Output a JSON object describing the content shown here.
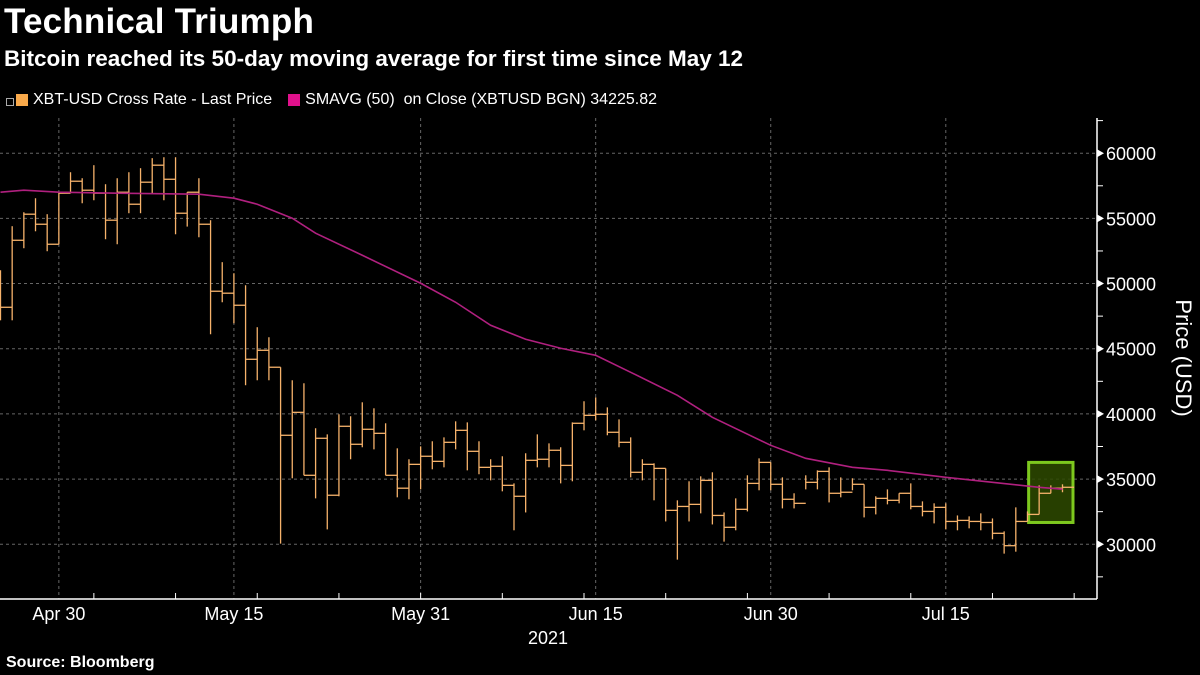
{
  "title": "Technical Triumph",
  "subtitle": "Bitcoin reached its 50-day moving average for first time since May 12",
  "source": "Source: Bloomberg",
  "colors": {
    "price": "#f6b26b",
    "legend_price": "#f9a94b",
    "sma": "#e0118c",
    "sma_line": "#b0207f",
    "highlight_fill": "#2e4a00",
    "highlight_stroke": "#7dc81e",
    "grid": "#666666",
    "axis": "#ffffff"
  },
  "legend": [
    {
      "label": "XBT-USD Cross Rate - Last Price",
      "color": "#f9a94b"
    },
    {
      "label": "SMAVG (50)  on Close (XBTUSD BGN) 34225.82",
      "color": "#e0118c"
    }
  ],
  "chart_data": {
    "type": "bar-hlc",
    "title": "Technical Triumph",
    "subtitle": "Bitcoin reached its 50-day moving average for first time since May 12",
    "ylabel": "Price (USD)",
    "xlabel": "2021",
    "ylim": [
      25800,
      62700
    ],
    "xlim": [
      "2021-04-25",
      "2021-07-28"
    ],
    "yticks": [
      30000,
      35000,
      40000,
      45000,
      50000,
      55000,
      60000
    ],
    "xticks": [
      {
        "date": "2021-04-30",
        "label": "Apr 30"
      },
      {
        "date": "2021-05-15",
        "label": "May 15"
      },
      {
        "date": "2021-05-31",
        "label": "May 31"
      },
      {
        "date": "2021-06-15",
        "label": "Jun 15"
      },
      {
        "date": "2021-06-30",
        "label": "Jun 30"
      },
      {
        "date": "2021-07-15",
        "label": "Jul 15"
      }
    ],
    "grid": true,
    "legend_position": "top-left",
    "series": [
      {
        "name": "XBT-USD Cross Rate - Last Price",
        "fields": [
          "date",
          "high",
          "low",
          "close"
        ],
        "bars": [
          [
            "2021-04-25",
            51020,
            47180,
            48180
          ],
          [
            "2021-04-26",
            54400,
            47180,
            53320
          ],
          [
            "2021-04-27",
            55470,
            52710,
            55320
          ],
          [
            "2021-04-28",
            56545,
            54010,
            54550
          ],
          [
            "2021-04-29",
            55320,
            52480,
            53015
          ],
          [
            "2021-04-30",
            57006,
            53015,
            56930
          ],
          [
            "2021-05-01",
            58540,
            56930,
            57850
          ],
          [
            "2021-05-02",
            58080,
            56160,
            57160
          ],
          [
            "2021-05-03",
            59080,
            56390,
            56930
          ],
          [
            "2021-05-04",
            57620,
            53400,
            54860
          ],
          [
            "2021-05-05",
            58080,
            53015,
            57006
          ],
          [
            "2021-05-06",
            58540,
            55395,
            56085
          ],
          [
            "2021-05-07",
            58850,
            55395,
            57775
          ],
          [
            "2021-05-08",
            59620,
            56930,
            59080
          ],
          [
            "2021-05-09",
            59690,
            56390,
            58000
          ],
          [
            "2021-05-10",
            59690,
            53780,
            55395
          ],
          [
            "2021-05-11",
            57006,
            54370,
            57006
          ],
          [
            "2021-05-12",
            58080,
            53550,
            54550
          ],
          [
            "2021-05-13",
            54860,
            46110,
            49410
          ],
          [
            "2021-05-14",
            51640,
            48565,
            49260
          ],
          [
            "2021-05-15",
            50790,
            46950,
            48335
          ],
          [
            "2021-05-16",
            49870,
            42200,
            44190
          ],
          [
            "2021-05-17",
            46650,
            42580,
            44880
          ],
          [
            "2021-05-18",
            45880,
            42580,
            43580
          ],
          [
            "2021-05-19",
            43580,
            30050,
            38360
          ],
          [
            "2021-05-20",
            42580,
            35060,
            40120
          ],
          [
            "2021-05-21",
            42350,
            35290,
            35290
          ],
          [
            "2021-05-22",
            38900,
            33520,
            38130
          ],
          [
            "2021-05-23",
            38430,
            31140,
            33760
          ],
          [
            "2021-05-24",
            39970,
            33680,
            39050
          ],
          [
            "2021-05-25",
            39820,
            36520,
            37670
          ],
          [
            "2021-05-26",
            40890,
            37440,
            38820
          ],
          [
            "2021-05-27",
            40430,
            37280,
            38510
          ],
          [
            "2021-05-28",
            39280,
            35290,
            35290
          ],
          [
            "2021-05-29",
            37360,
            33600,
            34300
          ],
          [
            "2021-05-30",
            36520,
            33450,
            36130
          ],
          [
            "2021-05-31",
            37510,
            34210,
            36750
          ],
          [
            "2021-06-01",
            37900,
            35750,
            36360
          ],
          [
            "2021-06-02",
            38200,
            35900,
            37820
          ],
          [
            "2021-06-03",
            39430,
            37280,
            38740
          ],
          [
            "2021-06-04",
            39350,
            35670,
            37130
          ],
          [
            "2021-06-05",
            37900,
            35370,
            35900
          ],
          [
            "2021-06-06",
            36520,
            34900,
            35980
          ],
          [
            "2021-06-07",
            36750,
            34060,
            34520
          ],
          [
            "2021-06-08",
            34670,
            31070,
            33680
          ],
          [
            "2021-06-09",
            36980,
            32440,
            36440
          ],
          [
            "2021-06-10",
            38430,
            35900,
            36520
          ],
          [
            "2021-06-11",
            37740,
            35900,
            37210
          ],
          [
            "2021-06-12",
            37440,
            34670,
            36050
          ],
          [
            "2021-06-13",
            39350,
            34830,
            39280
          ],
          [
            "2021-06-14",
            40970,
            38740,
            39890
          ],
          [
            "2021-06-15",
            41270,
            39510,
            39970
          ],
          [
            "2021-06-16",
            40500,
            38360,
            38590
          ],
          [
            "2021-06-17",
            39580,
            37440,
            37820
          ],
          [
            "2021-06-18",
            38200,
            35130,
            35520
          ],
          [
            "2021-06-19",
            36520,
            34900,
            36130
          ],
          [
            "2021-06-20",
            36210,
            33370,
            35820
          ],
          [
            "2021-06-21",
            35820,
            31750,
            32600
          ],
          [
            "2021-06-22",
            33370,
            28820,
            32900
          ],
          [
            "2021-06-23",
            34830,
            31750,
            33060
          ],
          [
            "2021-06-24",
            35210,
            32370,
            34900
          ],
          [
            "2021-06-25",
            35520,
            31520,
            32210
          ],
          [
            "2021-06-26",
            32440,
            30200,
            31300
          ],
          [
            "2021-06-27",
            33520,
            31070,
            32680
          ],
          [
            "2021-06-28",
            35290,
            32520,
            34670
          ],
          [
            "2021-06-29",
            36590,
            34140,
            36280
          ],
          [
            "2021-06-30",
            36280,
            34140,
            34600
          ],
          [
            "2021-07-01",
            35130,
            32750,
            33450
          ],
          [
            "2021-07-02",
            33910,
            32750,
            33140
          ],
          [
            "2021-07-03",
            35290,
            34210,
            34750
          ],
          [
            "2021-07-04",
            35670,
            34210,
            35590
          ],
          [
            "2021-07-05",
            35900,
            33210,
            33910
          ],
          [
            "2021-07-06",
            35130,
            33600,
            33990
          ],
          [
            "2021-07-07",
            35060,
            34140,
            34600
          ],
          [
            "2021-07-08",
            34600,
            32060,
            32830
          ],
          [
            "2021-07-09",
            33680,
            32290,
            33520
          ],
          [
            "2021-07-10",
            34210,
            33060,
            33370
          ],
          [
            "2021-07-11",
            33910,
            33140,
            33910
          ],
          [
            "2021-07-12",
            34670,
            32680,
            32900
          ],
          [
            "2021-07-13",
            33290,
            32140,
            32520
          ],
          [
            "2021-07-14",
            33140,
            31600,
            32830
          ],
          [
            "2021-07-15",
            33140,
            31140,
            31750
          ],
          [
            "2021-07-16",
            32210,
            31070,
            31830
          ],
          [
            "2021-07-17",
            32140,
            31220,
            31750
          ],
          [
            "2021-07-18",
            32370,
            31070,
            31670
          ],
          [
            "2021-07-19",
            31980,
            30380,
            30840
          ],
          [
            "2021-07-20",
            30990,
            29280,
            29890
          ],
          [
            "2021-07-21",
            32830,
            29430,
            31750
          ],
          [
            "2021-07-22",
            32520,
            31750,
            32290
          ],
          [
            "2021-07-23",
            34520,
            32290,
            33910
          ],
          [
            "2021-07-24",
            34520,
            33910,
            34300
          ],
          [
            "2021-07-25",
            34600,
            33990,
            34370
          ]
        ]
      },
      {
        "name": "SMAVG (50)  on Close (XBTUSD BGN)",
        "last_value": 34225.82,
        "points": [
          [
            "2021-04-25",
            57007
          ],
          [
            "2021-04-27",
            57160
          ],
          [
            "2021-04-30",
            57007
          ],
          [
            "2021-05-05",
            56930
          ],
          [
            "2021-05-12",
            56853
          ],
          [
            "2021-05-15",
            56546
          ],
          [
            "2021-05-17",
            56086
          ],
          [
            "2021-05-20",
            55011
          ],
          [
            "2021-05-22",
            53860
          ],
          [
            "2021-05-26",
            52172
          ],
          [
            "2021-05-31",
            50023
          ],
          [
            "2021-06-03",
            48565
          ],
          [
            "2021-06-06",
            46800
          ],
          [
            "2021-06-09",
            45725
          ],
          [
            "2021-06-12",
            45034
          ],
          [
            "2021-06-15",
            44497
          ],
          [
            "2021-06-18",
            43192
          ],
          [
            "2021-06-22",
            41427
          ],
          [
            "2021-06-25",
            39739
          ],
          [
            "2021-06-30",
            37590
          ],
          [
            "2021-07-03",
            36592
          ],
          [
            "2021-07-07",
            35901
          ],
          [
            "2021-07-10",
            35671
          ],
          [
            "2021-07-15",
            35134
          ],
          [
            "2021-07-19",
            34750
          ],
          [
            "2021-07-23",
            34366
          ],
          [
            "2021-07-25",
            34226
          ]
        ]
      }
    ],
    "annotations": [
      {
        "type": "highlight-box",
        "date_range": [
          "2021-07-23",
          "2021-07-25"
        ],
        "price_range": [
          31670,
          36280
        ]
      }
    ]
  }
}
